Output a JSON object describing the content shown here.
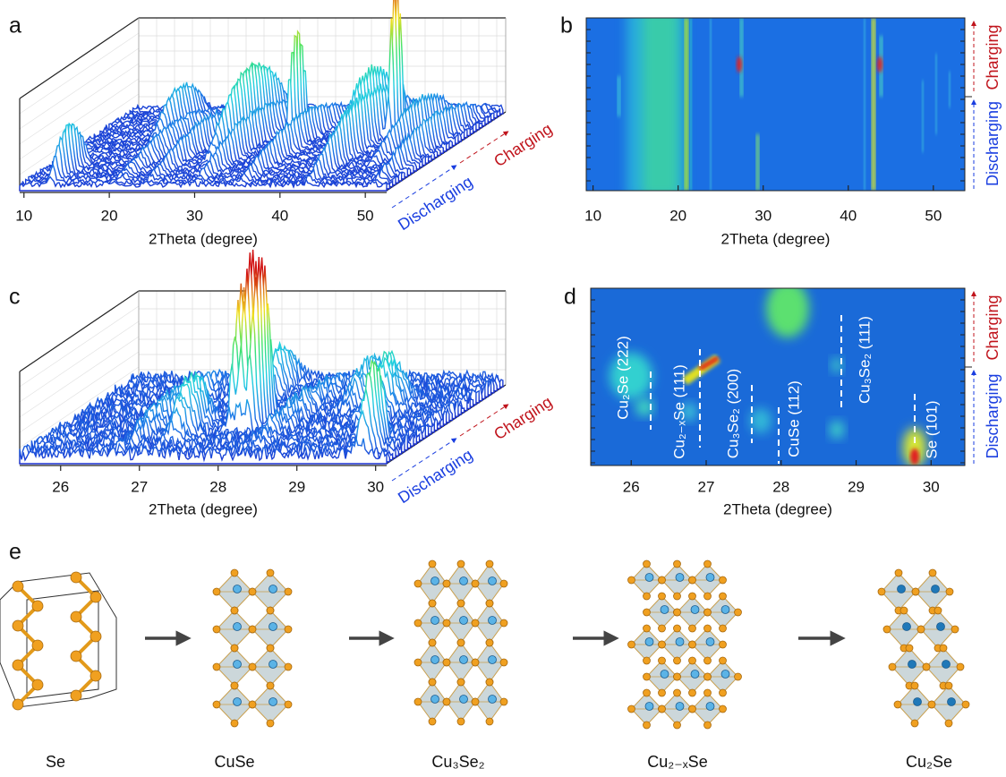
{
  "panels": [
    {
      "label": "a",
      "xlim": [
        9.5,
        52.5
      ],
      "xticks": [
        10,
        20,
        30,
        40,
        50
      ],
      "xlabel": "2Theta (degree)",
      "discharging": "Discharging",
      "charging": "Charging"
    },
    {
      "label": "b",
      "xlim": [
        9.2,
        53.7
      ],
      "xticks": [
        10,
        20,
        30,
        40,
        50
      ],
      "xlabel": "2Theta (degree)",
      "discharging": "Discharging",
      "charging": "Charging"
    },
    {
      "label": "c",
      "xlim": [
        25.48,
        30.14
      ],
      "xticks": [
        26,
        27,
        28,
        29,
        30
      ],
      "xlabel": "2Theta (degree)",
      "discharging": "Discharging",
      "charging": "Charging"
    },
    {
      "label": "d",
      "xlim": [
        25.46,
        30.45
      ],
      "xticks": [
        26,
        27,
        28,
        29,
        30
      ],
      "xlabel": "2Theta (degree)",
      "discharging": "Discharging",
      "charging": "Charging",
      "annotations": [
        "Cu₂Se (222)",
        "Cu₂₋ₓSe (111)",
        "Cu₃Se₂ (200)",
        "CuSe (112)",
        "Cu₃Se₂ (111)",
        "Se (101)"
      ]
    },
    {
      "label": "e",
      "structures": [
        "Se",
        "CuSe",
        "Cu₃Se₂",
        "Cu₂₋ₓSe",
        "Cu₂Se"
      ]
    }
  ]
}
